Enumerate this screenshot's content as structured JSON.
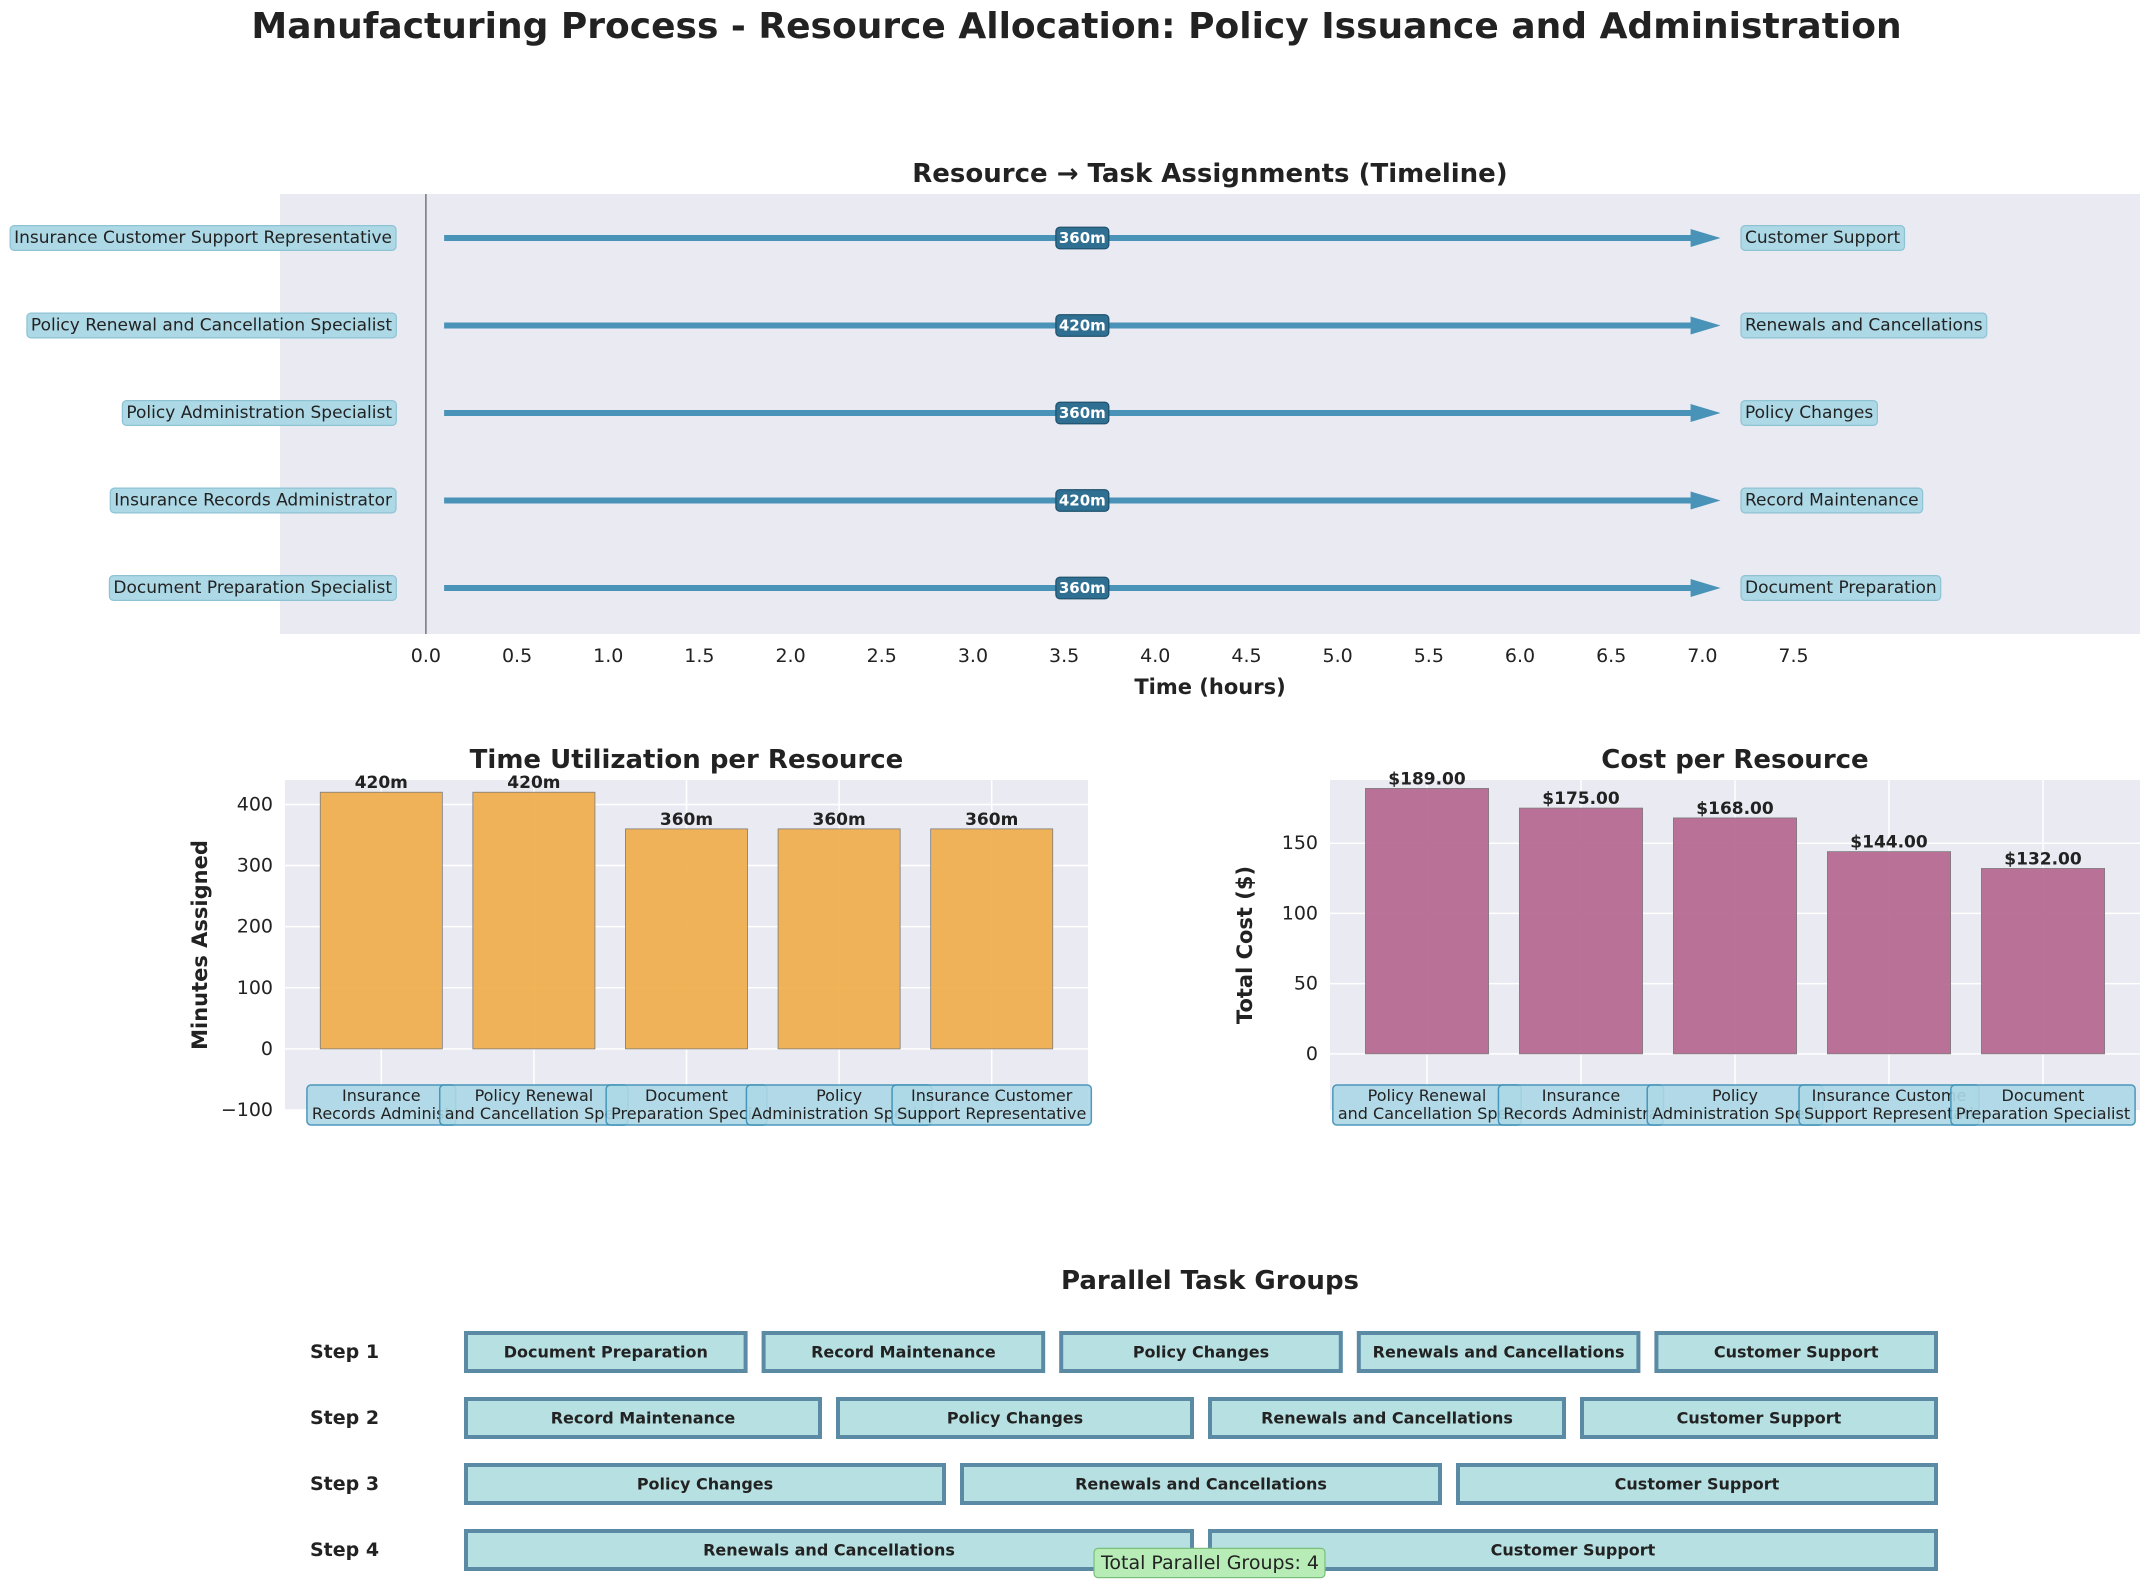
{
  "title": "Manufacturing Process - Resource Allocation: Policy Issuance and Administration",
  "colors": {
    "panel_bg": "#eaeaf2",
    "arrow": "#4a93b8",
    "orange": "#f0b050",
    "magenta": "#b86b94",
    "label_box": "#add8e6",
    "group_box": "#b7e0e2",
    "group_border": "#5b8aa5",
    "footer_box": "#b7ecb7"
  },
  "chart_data": [
    {
      "type": "timeline",
      "title": "Resource → Task Assignments (Timeline)",
      "xlabel": "Time (hours)",
      "xlim": [
        -0.8,
        9.4
      ],
      "xticks": [
        "0.0",
        "0.5",
        "1.0",
        "1.5",
        "2.0",
        "2.5",
        "3.0",
        "3.5",
        "4.0",
        "4.5",
        "5.0",
        "5.5",
        "6.0",
        "6.5",
        "7.0",
        "7.5"
      ],
      "assignments": [
        {
          "resource": "Insurance Customer Support Representative",
          "task": "Customer Support",
          "minutes": 360,
          "label": "360m"
        },
        {
          "resource": "Policy Renewal and Cancellation Specialist",
          "task": "Renewals and Cancellations",
          "minutes": 420,
          "label": "420m"
        },
        {
          "resource": "Policy Administration Specialist",
          "task": "Policy Changes",
          "minutes": 360,
          "label": "360m"
        },
        {
          "resource": "Insurance Records Administrator",
          "task": "Record Maintenance",
          "minutes": 420,
          "label": "420m"
        },
        {
          "resource": "Document Preparation Specialist",
          "task": "Document Preparation",
          "minutes": 360,
          "label": "360m"
        }
      ]
    },
    {
      "type": "bar",
      "title": "Time Utilization per Resource",
      "ylabel": "Minutes Assigned",
      "ylim": [
        -100,
        440
      ],
      "yticks": [
        "−100",
        "0",
        "100",
        "200",
        "300",
        "400"
      ],
      "categories": [
        "Insurance\nRecords Administ",
        "Policy Renewal\nand Cancellation Spec",
        "Document\nPreparation Specia",
        "Policy\nAdministration Specia",
        "Insurance Customer\nSupport Representative"
      ],
      "values": [
        420,
        420,
        360,
        360,
        360
      ],
      "value_labels": [
        "420m",
        "420m",
        "360m",
        "360m",
        "360m"
      ]
    },
    {
      "type": "bar",
      "title": "Cost per Resource",
      "ylabel": "Total Cost ($)",
      "ylim": [
        -40,
        195
      ],
      "yticks": [
        "0",
        "50",
        "100",
        "150"
      ],
      "categories": [
        "Policy Renewal\nand Cancellation Spec",
        "Insurance\nRecords Administra",
        "Policy\nAdministration Speci",
        "Insurance Custome\nSupport Representati",
        "Document\nPreparation Specialist"
      ],
      "values": [
        189.0,
        175.0,
        168.0,
        144.0,
        132.0
      ],
      "value_labels": [
        "$189.00",
        "$175.00",
        "$168.00",
        "$144.00",
        "$132.00"
      ]
    },
    {
      "type": "table",
      "title": "Parallel Task Groups",
      "steps": [
        {
          "label": "Step 1",
          "tasks": [
            "Document Preparation",
            "Record Maintenance",
            "Policy Changes",
            "Renewals and Cancellations",
            "Customer Support"
          ]
        },
        {
          "label": "Step 2",
          "tasks": [
            "Record Maintenance",
            "Policy Changes",
            "Renewals and Cancellations",
            "Customer Support"
          ]
        },
        {
          "label": "Step 3",
          "tasks": [
            "Policy Changes",
            "Renewals and Cancellations",
            "Customer Support"
          ]
        },
        {
          "label": "Step 4",
          "tasks": [
            "Renewals and Cancellations",
            "Customer Support"
          ]
        }
      ],
      "footer": "Total Parallel Groups: 4"
    }
  ]
}
